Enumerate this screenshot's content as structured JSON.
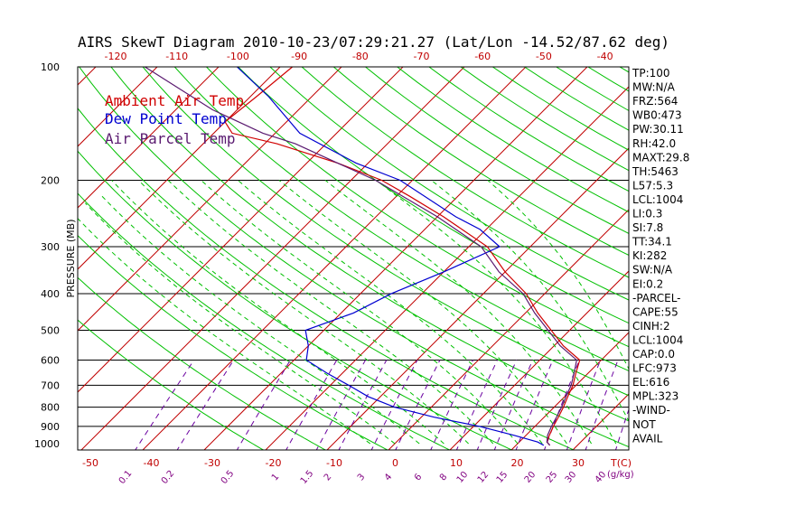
{
  "title": "AIRS SkewT Diagram 2010-10-23/07:29:21.27 (Lat/Lon -14.52/87.62 deg)",
  "colors": {
    "ambient": "#d00000",
    "dewpoint": "#0000d0",
    "parcel": "#5a1a70",
    "isotherm": "#c00000",
    "dry_adiabat": "#00c000",
    "moist_adiabat": "#00c000",
    "mixing_ratio": "#6a00a0"
  },
  "legend": {
    "ambient": "Ambient Air Temp",
    "dewpoint": "Dew Point Temp",
    "parcel": "Air Parcel Temp"
  },
  "chart_data": {
    "type": "line",
    "ylabel": "PRESSURE (MB)",
    "pressure_ticks": [
      "100",
      "200",
      "300",
      "400",
      "500",
      "600",
      "700",
      "800",
      "900",
      "1000"
    ],
    "pressure_lines": [
      200,
      300,
      400,
      500,
      600,
      700,
      800,
      900
    ],
    "top_temp_ticks": [
      "-120",
      "-110",
      "-100",
      "-90",
      "-80",
      "-70",
      "-60",
      "-50",
      "-40"
    ],
    "bottom_temp_ticks": [
      "-50",
      "-40",
      "-30",
      "-20",
      "-10",
      "0",
      "10",
      "20",
      "30"
    ],
    "bottom_temp_unit": "T(C)",
    "mixing_ratio_labels": [
      "0.1",
      "0.2",
      "0.5",
      "1",
      "1.5",
      "2",
      "3",
      "4",
      "6",
      "8",
      "10",
      "12",
      "15",
      "20",
      "25",
      "30",
      "40"
    ],
    "mixing_ratio_unit": "(g/kg)",
    "series": [
      {
        "name": "Ambient Air Temp",
        "points": [
          {
            "p": 1010,
            "t": 25.5
          },
          {
            "p": 990,
            "t": 24.5
          },
          {
            "p": 950,
            "t": 23.8
          },
          {
            "p": 900,
            "t": 23.0
          },
          {
            "p": 850,
            "t": 22.3
          },
          {
            "p": 800,
            "t": 21.5
          },
          {
            "p": 750,
            "t": 20.5
          },
          {
            "p": 700,
            "t": 19.5
          },
          {
            "p": 650,
            "t": 18.0
          },
          {
            "p": 600,
            "t": 16.5
          },
          {
            "p": 550,
            "t": 11.5
          },
          {
            "p": 500,
            "t": 7.0
          },
          {
            "p": 450,
            "t": 2.0
          },
          {
            "p": 400,
            "t": -3.0
          },
          {
            "p": 350,
            "t": -10.0
          },
          {
            "p": 300,
            "t": -17.0
          },
          {
            "p": 250,
            "t": -29.0
          },
          {
            "p": 220,
            "t": -38.0
          },
          {
            "p": 200,
            "t": -45.0
          },
          {
            "p": 180,
            "t": -55.0
          },
          {
            "p": 160,
            "t": -68.0
          },
          {
            "p": 150,
            "t": -77.0
          },
          {
            "p": 140,
            "t": -80.0
          },
          {
            "p": 120,
            "t": -79.0
          },
          {
            "p": 100,
            "t": -78.0
          }
        ]
      },
      {
        "name": "Dew Point Temp",
        "points": [
          {
            "p": 1010,
            "t": 24.5
          },
          {
            "p": 990,
            "t": 23.0
          },
          {
            "p": 950,
            "t": 18.0
          },
          {
            "p": 900,
            "t": 11.0
          },
          {
            "p": 850,
            "t": 2.0
          },
          {
            "p": 800,
            "t": -6.0
          },
          {
            "p": 750,
            "t": -12.0
          },
          {
            "p": 700,
            "t": -17.0
          },
          {
            "p": 650,
            "t": -22.5
          },
          {
            "p": 600,
            "t": -28.0
          },
          {
            "p": 550,
            "t": -30.0
          },
          {
            "p": 500,
            "t": -33.0
          },
          {
            "p": 450,
            "t": -28.0
          },
          {
            "p": 400,
            "t": -25.0
          },
          {
            "p": 350,
            "t": -20.0
          },
          {
            "p": 300,
            "t": -15.0
          },
          {
            "p": 270,
            "t": -21.0
          },
          {
            "p": 250,
            "t": -27.0
          },
          {
            "p": 200,
            "t": -42.0
          },
          {
            "p": 180,
            "t": -52.0
          },
          {
            "p": 150,
            "t": -66.0
          },
          {
            "p": 120,
            "t": -77.0
          },
          {
            "p": 100,
            "t": -87.0
          }
        ]
      },
      {
        "name": "Air Parcel Temp",
        "points": [
          {
            "p": 1010,
            "t": 25.5
          },
          {
            "p": 990,
            "t": 24.5
          },
          {
            "p": 950,
            "t": 23.5
          },
          {
            "p": 900,
            "t": 22.7
          },
          {
            "p": 850,
            "t": 22.0
          },
          {
            "p": 800,
            "t": 21.2
          },
          {
            "p": 750,
            "t": 20.2
          },
          {
            "p": 700,
            "t": 19.2
          },
          {
            "p": 650,
            "t": 17.7
          },
          {
            "p": 600,
            "t": 16.0
          },
          {
            "p": 550,
            "t": 11.0
          },
          {
            "p": 500,
            "t": 6.5
          },
          {
            "p": 450,
            "t": 1.5
          },
          {
            "p": 400,
            "t": -3.5
          },
          {
            "p": 350,
            "t": -11.0
          },
          {
            "p": 300,
            "t": -18.0
          },
          {
            "p": 250,
            "t": -30.0
          },
          {
            "p": 200,
            "t": -46.0
          },
          {
            "p": 180,
            "t": -55.0
          },
          {
            "p": 160,
            "t": -65.0
          },
          {
            "p": 150,
            "t": -72.0
          },
          {
            "p": 130,
            "t": -84.0
          },
          {
            "p": 100,
            "t": -102.0
          }
        ]
      }
    ]
  },
  "indices": [
    "TP:100",
    "MW:N/A",
    "FRZ:564",
    "WB0:473",
    "PW:30.11",
    "RH:42.0",
    "MAXT:29.8",
    "TH:5463",
    "L57:5.3",
    "LCL:1004",
    "LI:0.3",
    "SI:7.8",
    "TT:34.1",
    "KI:282",
    "SW:N/A",
    "EI:0.2",
    "-PARCEL-",
    "CAPE:55",
    "CINH:2",
    "LCL:1004",
    "CAP:0.0",
    "LFC:973",
    "EL:616",
    "MPL:323",
    "-WIND-",
    "NOT",
    "AVAIL"
  ]
}
